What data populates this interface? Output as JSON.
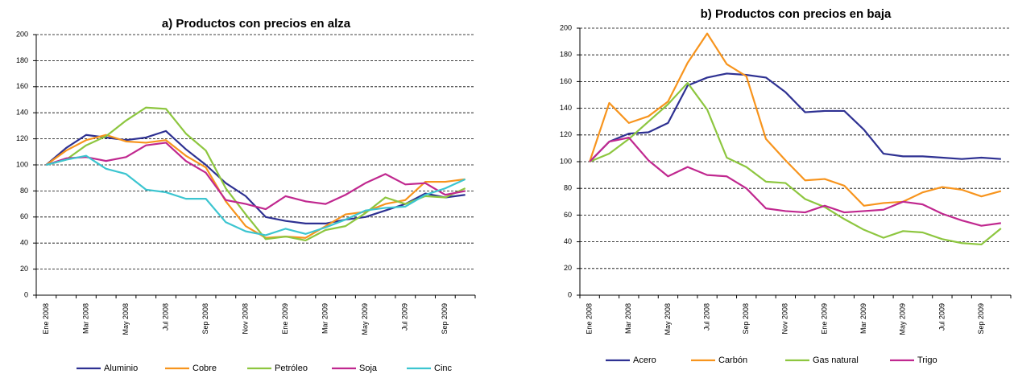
{
  "chart_data": [
    {
      "type": "line",
      "title": "a) Productos con precios en alza",
      "categories": [
        "Ene 2008",
        null,
        "Mar 2008",
        null,
        "May 2008",
        null,
        "Jul 2008",
        null,
        "Sep 2008",
        null,
        "Nov 2008",
        null,
        "Ene 2009",
        null,
        "Mar 2009",
        null,
        "May 2009",
        null,
        "Jul 2009",
        null,
        "Sep 2009",
        null
      ],
      "ylim": [
        0,
        200
      ],
      "yticks": [
        0,
        20,
        40,
        60,
        80,
        100,
        120,
        140,
        160,
        180,
        200
      ],
      "grid": true,
      "series": [
        {
          "name": "Aluminio",
          "color": "#2e3192",
          "values": [
            100,
            113,
            123,
            121,
            119,
            121,
            126,
            112,
            100,
            86,
            76,
            60,
            57,
            55,
            55,
            58,
            60,
            65,
            70,
            78,
            75,
            77
          ]
        },
        {
          "name": "Cobre",
          "color": "#f7941d",
          "values": [
            100,
            111,
            119,
            123,
            118,
            117,
            119,
            107,
            98,
            72,
            53,
            44,
            45,
            44,
            53,
            62,
            64,
            70,
            73,
            87,
            87,
            89
          ]
        },
        {
          "name": "Petróleo",
          "color": "#8dc63f",
          "values": [
            100,
            104,
            115,
            122,
            134,
            144,
            143,
            124,
            111,
            82,
            62,
            43,
            45,
            42,
            50,
            53,
            63,
            75,
            70,
            76,
            75,
            82
          ]
        },
        {
          "name": "Soja",
          "color": "#c0288f",
          "values": [
            100,
            105,
            106,
            103,
            106,
            115,
            117,
            103,
            94,
            73,
            70,
            66,
            76,
            72,
            70,
            77,
            86,
            93,
            85,
            86,
            77,
            80
          ]
        },
        {
          "name": "Cinc",
          "color": "#3cc5d0",
          "values": [
            100,
            104,
            107,
            97,
            93,
            81,
            79,
            74,
            74,
            56,
            49,
            46,
            51,
            47,
            52,
            58,
            65,
            67,
            68,
            77,
            82,
            89
          ]
        }
      ]
    },
    {
      "type": "line",
      "title": "b) Productos con precios en baja",
      "categories": [
        "Ene 2008",
        null,
        "Mar 2008",
        null,
        "May 2008",
        null,
        "Jul 2008",
        null,
        "Sep 2008",
        null,
        "Nov 2008",
        null,
        "Ene 2009",
        null,
        "Mar 2009",
        null,
        "May 2009",
        null,
        "Jul 2009",
        null,
        "Sep 2009",
        null
      ],
      "ylim": [
        0,
        200
      ],
      "yticks": [
        0,
        20,
        40,
        60,
        80,
        100,
        120,
        140,
        160,
        180,
        200
      ],
      "grid": true,
      "series": [
        {
          "name": "Acero",
          "color": "#2e3192",
          "values": [
            100,
            115,
            121,
            122,
            129,
            157,
            163,
            166,
            165,
            163,
            152,
            137,
            138,
            138,
            124,
            106,
            104,
            104,
            103,
            102,
            103,
            102
          ]
        },
        {
          "name": "Carbón",
          "color": "#f7941d",
          "values": [
            100,
            144,
            129,
            134,
            145,
            174,
            196,
            173,
            164,
            117,
            101,
            86,
            87,
            82,
            67,
            69,
            70,
            77,
            81,
            79,
            74,
            78
          ]
        },
        {
          "name": "Gas natural",
          "color": "#8dc63f",
          "values": [
            100,
            106,
            117,
            130,
            143,
            159,
            139,
            103,
            96,
            85,
            84,
            72,
            66,
            57,
            49,
            43,
            48,
            47,
            42,
            39,
            38,
            50
          ]
        },
        {
          "name": "Trigo",
          "color": "#c0288f",
          "values": [
            100,
            115,
            118,
            101,
            89,
            96,
            90,
            89,
            80,
            65,
            63,
            62,
            67,
            62,
            63,
            64,
            70,
            68,
            61,
            56,
            52,
            54
          ]
        }
      ]
    }
  ]
}
